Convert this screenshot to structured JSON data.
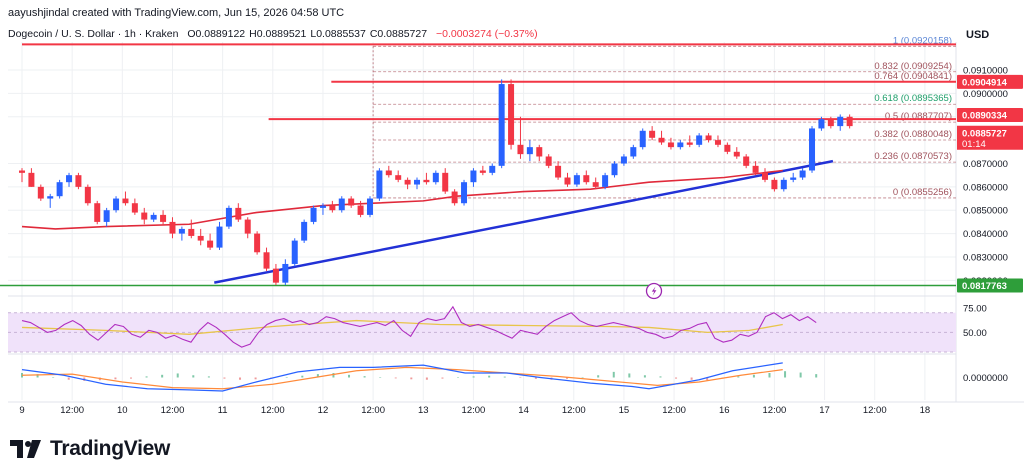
{
  "header": {
    "credit": "aayushjindal created with TradingView.com, Jun 15, 2026 04:58 UTC",
    "symbol": "Dogecoin / U. S. Dollar · 1h · Kraken",
    "ohlc": [
      {
        "label": "O",
        "value": "0.0889122"
      },
      {
        "label": "H",
        "value": "0.0889521"
      },
      {
        "label": "L",
        "value": "0.0885537"
      },
      {
        "label": "C",
        "value": "0.0885727"
      }
    ],
    "change": "−0.0003274 (−0.37%)",
    "currency": "USD"
  },
  "colors": {
    "up": "#2962ff",
    "down": "#f23645",
    "ma": "#e0293a",
    "trendline": "#2231d6",
    "support": "#2e9e3a",
    "fib_level": "#b0606a",
    "fib_label": "#a0525c",
    "fib_top_label": "#5c87d6",
    "fib_618_label": "#1e9e6a",
    "rsi": "#b02ec0",
    "rsi_ma": "#e8c54a",
    "rsi_band": "#f0e2fa",
    "macd": "#2962ff",
    "macd_signal": "#ff8a3a",
    "hist_pos": "#7fc8a8",
    "hist_neg": "#ef9a9a",
    "grid": "#eef0f3",
    "axis_text": "#131722"
  },
  "chart_data": {
    "type": "candlestick",
    "x_range": [
      0,
      196
    ],
    "ylim": [
      0.0815,
      0.0922
    ],
    "price_ticks": [
      "0.0910000",
      "0.0900000",
      "0.0890000",
      "0.0870000",
      "0.0860000",
      "0.0850000",
      "0.0840000",
      "0.0830000",
      "0.0820000"
    ],
    "time_ticks": [
      {
        "x": 0,
        "label": "9"
      },
      {
        "x": 12,
        "label": "12:00"
      },
      {
        "x": 24,
        "label": "10"
      },
      {
        "x": 36,
        "label": "12:00"
      },
      {
        "x": 48,
        "label": "11"
      },
      {
        "x": 60,
        "label": "12:00"
      },
      {
        "x": 72,
        "label": "12"
      },
      {
        "x": 84,
        "label": "12:00"
      },
      {
        "x": 96,
        "label": "13"
      },
      {
        "x": 108,
        "label": "12:00"
      },
      {
        "x": 120,
        "label": "14"
      },
      {
        "x": 132,
        "label": "12:00"
      },
      {
        "x": 144,
        "label": "15"
      },
      {
        "x": 156,
        "label": "12:00"
      },
      {
        "x": 168,
        "label": "16"
      },
      {
        "x": 180,
        "label": "12:00"
      },
      {
        "x": 192,
        "label": "17"
      },
      {
        "x": 204,
        "label": "12:00"
      },
      {
        "x": 216,
        "label": "18"
      }
    ],
    "candles": [
      [
        0.0867,
        0.0868,
        0.0862,
        0.0866
      ],
      [
        0.0866,
        0.0868,
        0.086,
        0.086
      ],
      [
        0.086,
        0.0861,
        0.0854,
        0.0855
      ],
      [
        0.0855,
        0.0857,
        0.0851,
        0.0856
      ],
      [
        0.0856,
        0.0863,
        0.0855,
        0.0862
      ],
      [
        0.0862,
        0.0866,
        0.086,
        0.0865
      ],
      [
        0.0865,
        0.0866,
        0.0859,
        0.086
      ],
      [
        0.086,
        0.0861,
        0.0852,
        0.0853
      ],
      [
        0.0853,
        0.0854,
        0.0844,
        0.0845
      ],
      [
        0.0845,
        0.0851,
        0.0843,
        0.085
      ],
      [
        0.085,
        0.0856,
        0.0849,
        0.0855
      ],
      [
        0.0855,
        0.0858,
        0.0852,
        0.0853
      ],
      [
        0.0853,
        0.0855,
        0.0848,
        0.0849
      ],
      [
        0.0849,
        0.0851,
        0.0844,
        0.0846
      ],
      [
        0.0846,
        0.0849,
        0.0845,
        0.0848
      ],
      [
        0.0848,
        0.085,
        0.0844,
        0.0845
      ],
      [
        0.0845,
        0.0847,
        0.0838,
        0.084
      ],
      [
        0.084,
        0.0843,
        0.0837,
        0.0842
      ],
      [
        0.0842,
        0.0846,
        0.0838,
        0.0839
      ],
      [
        0.0839,
        0.0842,
        0.0835,
        0.0837
      ],
      [
        0.0837,
        0.084,
        0.0833,
        0.0834
      ],
      [
        0.0834,
        0.0845,
        0.0833,
        0.0843
      ],
      [
        0.0843,
        0.0852,
        0.0842,
        0.0851
      ],
      [
        0.0851,
        0.0853,
        0.0845,
        0.0846
      ],
      [
        0.0846,
        0.0847,
        0.0838,
        0.084
      ],
      [
        0.084,
        0.0841,
        0.0831,
        0.0832
      ],
      [
        0.0832,
        0.0834,
        0.0824,
        0.0825
      ],
      [
        0.0825,
        0.0827,
        0.0818,
        0.0819
      ],
      [
        0.0819,
        0.0829,
        0.0818,
        0.0827
      ],
      [
        0.0827,
        0.0838,
        0.0826,
        0.0837
      ],
      [
        0.0837,
        0.0846,
        0.0836,
        0.0845
      ],
      [
        0.0845,
        0.0852,
        0.0844,
        0.0851
      ],
      [
        0.0851,
        0.0853,
        0.0848,
        0.0852
      ],
      [
        0.0852,
        0.0854,
        0.0849,
        0.085
      ],
      [
        0.085,
        0.0856,
        0.0849,
        0.0855
      ],
      [
        0.0855,
        0.0856,
        0.0851,
        0.0852
      ],
      [
        0.0852,
        0.0854,
        0.0847,
        0.0848
      ],
      [
        0.0848,
        0.0856,
        0.0847,
        0.0855
      ],
      [
        0.0855,
        0.0868,
        0.0854,
        0.0867
      ],
      [
        0.0867,
        0.0869,
        0.0864,
        0.0865
      ],
      [
        0.0865,
        0.0867,
        0.0862,
        0.0863
      ],
      [
        0.0863,
        0.0864,
        0.0859,
        0.0861
      ],
      [
        0.0861,
        0.0864,
        0.0859,
        0.0863
      ],
      [
        0.0863,
        0.0866,
        0.0861,
        0.0862
      ],
      [
        0.0862,
        0.0867,
        0.0861,
        0.0866
      ],
      [
        0.0866,
        0.0868,
        0.0857,
        0.0858
      ],
      [
        0.0858,
        0.0859,
        0.0852,
        0.0853
      ],
      [
        0.0853,
        0.0863,
        0.0852,
        0.0862
      ],
      [
        0.0862,
        0.0868,
        0.086,
        0.0867
      ],
      [
        0.0867,
        0.0869,
        0.0865,
        0.0866
      ],
      [
        0.0866,
        0.087,
        0.0865,
        0.0869
      ],
      [
        0.0869,
        0.0906,
        0.0868,
        0.0904
      ],
      [
        0.0904,
        0.0906,
        0.0876,
        0.0878
      ],
      [
        0.0878,
        0.089,
        0.0872,
        0.0874
      ],
      [
        0.0874,
        0.088,
        0.0871,
        0.0877
      ],
      [
        0.0877,
        0.0878,
        0.0871,
        0.0873
      ],
      [
        0.0873,
        0.0874,
        0.0868,
        0.0869
      ],
      [
        0.0869,
        0.0871,
        0.0863,
        0.0864
      ],
      [
        0.0864,
        0.0866,
        0.086,
        0.0861
      ],
      [
        0.0861,
        0.0866,
        0.086,
        0.0865
      ],
      [
        0.0865,
        0.0867,
        0.0861,
        0.0862
      ],
      [
        0.0862,
        0.0864,
        0.0859,
        0.086
      ],
      [
        0.086,
        0.0866,
        0.0859,
        0.0865
      ],
      [
        0.0865,
        0.0871,
        0.0864,
        0.087
      ],
      [
        0.087,
        0.0874,
        0.0869,
        0.0873
      ],
      [
        0.0873,
        0.0878,
        0.0872,
        0.0877
      ],
      [
        0.0877,
        0.0885,
        0.0876,
        0.0884
      ],
      [
        0.0884,
        0.0886,
        0.088,
        0.0881
      ],
      [
        0.0881,
        0.0884,
        0.0878,
        0.0879
      ],
      [
        0.0879,
        0.0881,
        0.0876,
        0.0877
      ],
      [
        0.0877,
        0.088,
        0.0876,
        0.0879
      ],
      [
        0.0879,
        0.0882,
        0.0877,
        0.0878
      ],
      [
        0.0878,
        0.0883,
        0.0877,
        0.0882
      ],
      [
        0.0882,
        0.0883,
        0.0879,
        0.088
      ],
      [
        0.088,
        0.0882,
        0.0877,
        0.0878
      ],
      [
        0.0878,
        0.0879,
        0.0874,
        0.0875
      ],
      [
        0.0875,
        0.0877,
        0.0872,
        0.0873
      ],
      [
        0.0873,
        0.0874,
        0.0868,
        0.0869
      ],
      [
        0.0869,
        0.0871,
        0.0865,
        0.0866
      ],
      [
        0.0866,
        0.0868,
        0.0862,
        0.0863
      ],
      [
        0.0863,
        0.0864,
        0.0858,
        0.0859
      ],
      [
        0.0859,
        0.0864,
        0.0858,
        0.0863
      ],
      [
        0.0863,
        0.0866,
        0.0862,
        0.0864
      ],
      [
        0.0864,
        0.0868,
        0.0863,
        0.0867
      ],
      [
        0.0867,
        0.0886,
        0.0866,
        0.0885
      ],
      [
        0.0885,
        0.089,
        0.0884,
        0.0889
      ],
      [
        0.0889,
        0.089,
        0.0885,
        0.0886
      ],
      [
        0.0886,
        0.0891,
        0.0884,
        0.089
      ],
      [
        0.089,
        0.0891,
        0.0885,
        0.0886
      ]
    ],
    "candle_x_step": 2.25,
    "ma": [
      [
        0,
        0.0843
      ],
      [
        8,
        0.0842
      ],
      [
        20,
        0.0843
      ],
      [
        40,
        0.0844
      ],
      [
        56,
        0.0849
      ],
      [
        72,
        0.0852
      ],
      [
        84,
        0.0853
      ],
      [
        96,
        0.0854
      ],
      [
        104,
        0.0856
      ],
      [
        120,
        0.0858
      ],
      [
        136,
        0.0859
      ],
      [
        150,
        0.0862
      ],
      [
        168,
        0.0864
      ],
      [
        182,
        0.0867
      ]
    ],
    "trendline": [
      [
        46,
        0.0819
      ],
      [
        194,
        0.0871
      ]
    ],
    "support_line": {
      "price": "0.0817763",
      "value": 0.081776
    },
    "resistance_lines": [
      {
        "x_start": 0,
        "value": 0.0921
      },
      {
        "x_start": 74,
        "value": 0.0905
      },
      {
        "x_start": 59,
        "value": 0.0889
      }
    ],
    "fib_x_start": 84,
    "fib_levels": [
      {
        "label": "1 (0.0920158)",
        "value": 0.0920158
      },
      {
        "label": "0.832 (0.0909254)",
        "value": 0.0909254
      },
      {
        "label": "0.764 (0.0904841)",
        "value": 0.0904841
      },
      {
        "label": "0.618 (0.0895365)",
        "value": 0.0895365
      },
      {
        "label": "0.5 (0.0887707)",
        "value": 0.0887707
      },
      {
        "label": "0.382 (0.0880048)",
        "value": 0.0880048
      },
      {
        "label": "0.236 (0.0870573)",
        "value": 0.0870573
      },
      {
        "label": "0 (0.0855256)",
        "value": 0.0855256
      }
    ],
    "price_badges": [
      {
        "text": "0.0904914",
        "value": 0.0904914
      },
      {
        "text": "0.0890334",
        "value": 0.0890334
      },
      {
        "text": "0.0885727",
        "value": 0.0885727
      }
    ],
    "countdown": "01:14",
    "rsi": {
      "ticks": [
        "75.00",
        "50.00"
      ],
      "ylim": [
        30,
        85
      ],
      "band": [
        30,
        70
      ],
      "values": [
        62,
        60,
        55,
        50,
        52,
        58,
        62,
        57,
        48,
        42,
        50,
        58,
        56,
        48,
        45,
        52,
        50,
        44,
        47,
        43,
        40,
        52,
        60,
        55,
        48,
        40,
        35,
        38,
        50,
        58,
        62,
        64,
        60,
        62,
        58,
        60,
        66,
        64,
        60,
        58,
        56,
        58,
        60,
        57,
        62,
        52,
        46,
        60,
        64,
        62,
        64,
        76,
        60,
        56,
        58,
        55,
        52,
        48,
        44,
        52,
        50,
        48,
        56,
        62,
        66,
        70,
        62,
        58,
        56,
        58,
        60,
        58,
        56,
        54,
        50,
        48,
        44,
        46,
        52,
        54,
        58,
        60,
        44,
        40,
        42,
        48,
        46,
        50,
        66,
        70,
        64,
        68,
        62,
        66,
        60
      ],
      "ma_values": [
        [
          0,
          55
        ],
        [
          20,
          52
        ],
        [
          40,
          48
        ],
        [
          60,
          56
        ],
        [
          80,
          62
        ],
        [
          100,
          58
        ],
        [
          120,
          57
        ],
        [
          140,
          56
        ],
        [
          150,
          55
        ],
        [
          164,
          50
        ],
        [
          174,
          52
        ],
        [
          182,
          58
        ]
      ]
    },
    "macd": {
      "tick": "0.0000000",
      "ylim": [
        -1,
        1
      ],
      "macd_values": [
        [
          0,
          0.35
        ],
        [
          10,
          0.1
        ],
        [
          20,
          -0.3
        ],
        [
          30,
          -0.5
        ],
        [
          40,
          -0.55
        ],
        [
          48,
          -0.6
        ],
        [
          56,
          -0.2
        ],
        [
          66,
          0.25
        ],
        [
          76,
          0.45
        ],
        [
          84,
          0.45
        ],
        [
          96,
          0.55
        ],
        [
          106,
          0.2
        ],
        [
          116,
          0.2
        ],
        [
          124,
          0.0
        ],
        [
          136,
          -0.25
        ],
        [
          146,
          -0.4
        ],
        [
          150,
          -0.5
        ],
        [
          162,
          -0.1
        ],
        [
          170,
          0.3
        ],
        [
          182,
          0.65
        ]
      ],
      "signal_values": [
        [
          0,
          0.1
        ],
        [
          12,
          0.15
        ],
        [
          24,
          -0.2
        ],
        [
          36,
          -0.45
        ],
        [
          48,
          -0.5
        ],
        [
          60,
          -0.3
        ],
        [
          70,
          0.0
        ],
        [
          80,
          0.3
        ],
        [
          92,
          0.45
        ],
        [
          104,
          0.35
        ],
        [
          116,
          0.2
        ],
        [
          128,
          0.05
        ],
        [
          140,
          -0.15
        ],
        [
          152,
          -0.35
        ],
        [
          162,
          -0.2
        ],
        [
          172,
          0.1
        ],
        [
          182,
          0.35
        ]
      ],
      "hist": [
        0.2,
        0.15,
        0.0,
        -0.1,
        -0.15,
        -0.12,
        -0.08,
        -0.05,
        0.05,
        0.12,
        0.18,
        0.1,
        0.05,
        -0.05,
        -0.1,
        -0.08,
        -0.05,
        0.02,
        0.08,
        0.15,
        0.2,
        0.12,
        0.06,
        0.02,
        -0.04,
        -0.08,
        -0.1,
        -0.05,
        0.02,
        0.05,
        0.08,
        0.04,
        -0.02,
        -0.06,
        -0.1,
        -0.06,
        0.02,
        0.1,
        0.25,
        0.18,
        0.1,
        0.05,
        -0.05,
        -0.1,
        -0.12,
        -0.05,
        0.05,
        0.12,
        0.2,
        0.28,
        0.22,
        0.15
      ]
    }
  },
  "brand": {
    "name": "TradingView"
  }
}
